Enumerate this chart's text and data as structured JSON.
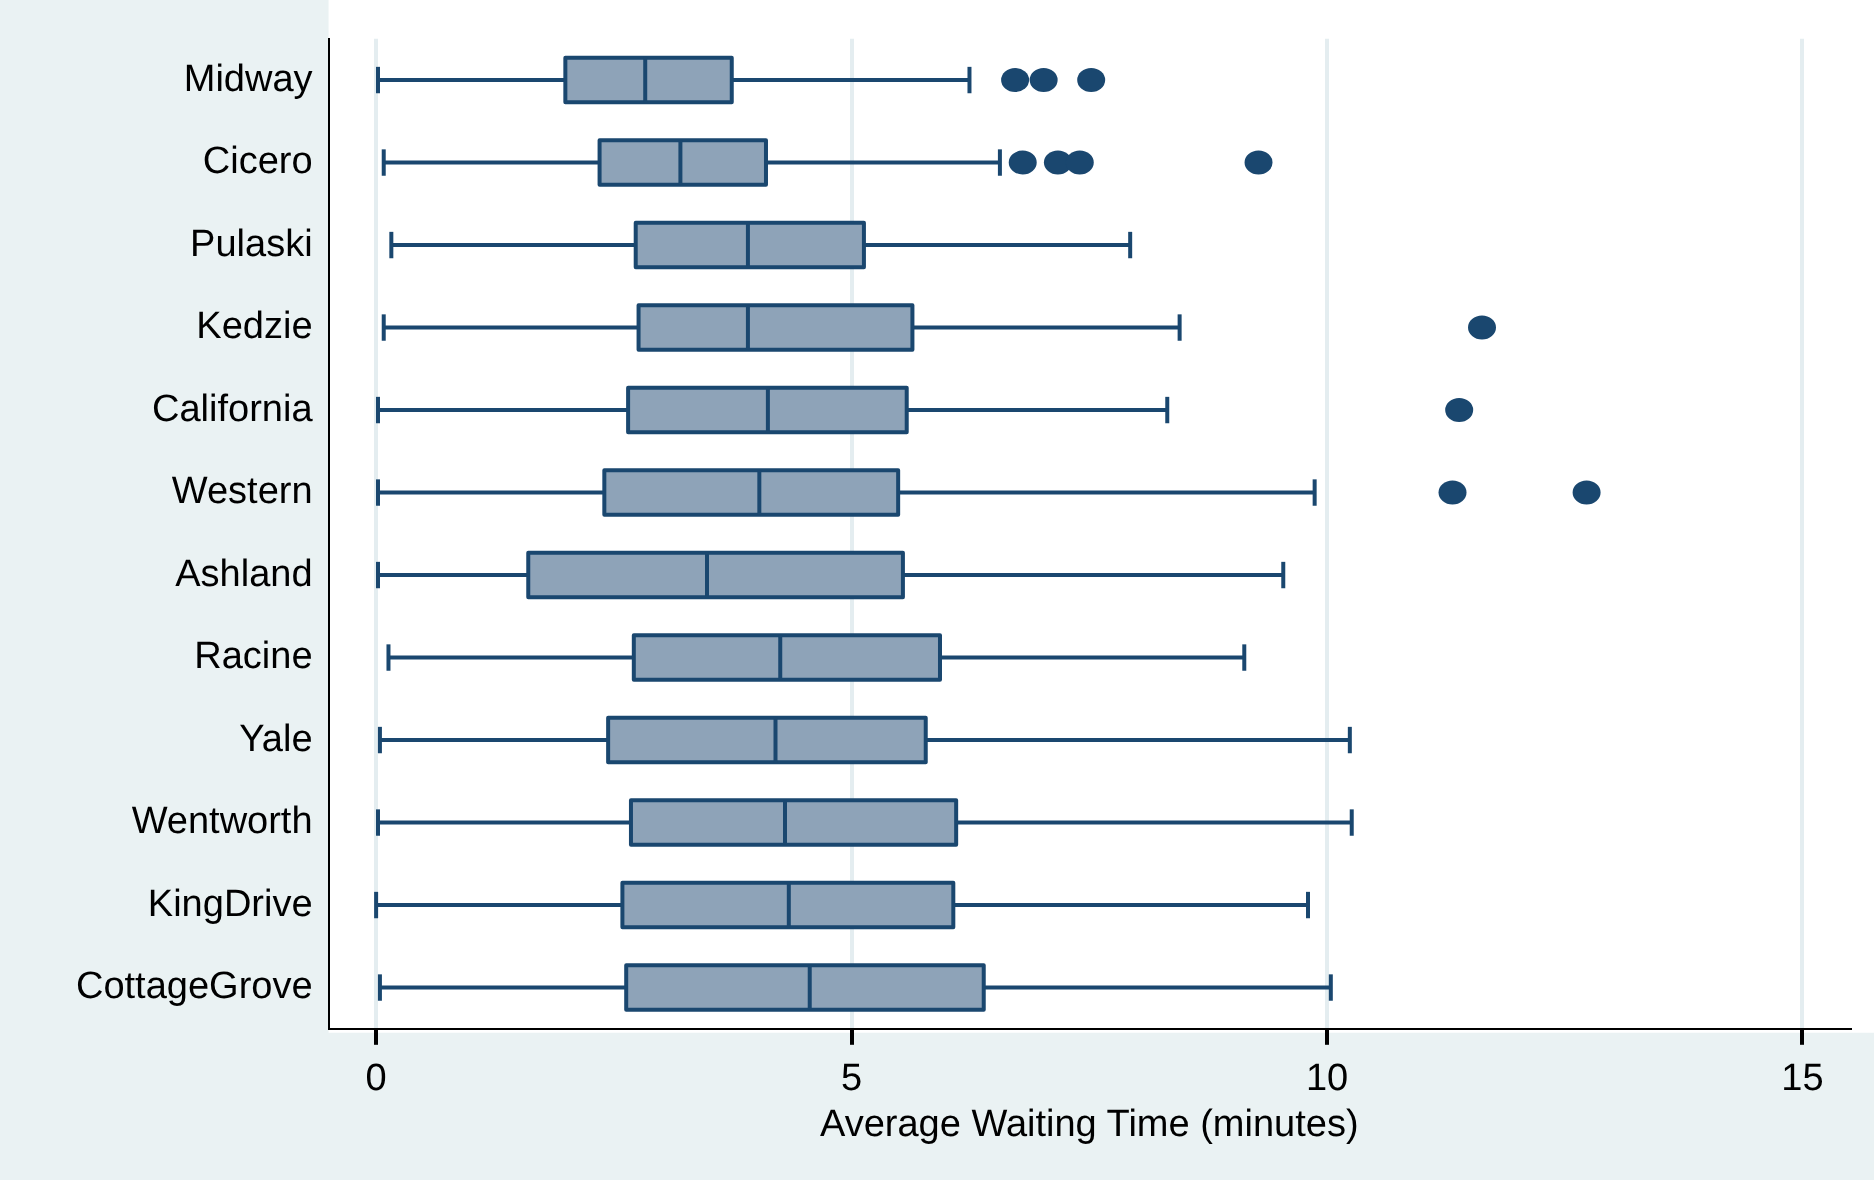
{
  "chart_data": {
    "type": "box",
    "orientation": "horizontal",
    "xlabel": "Average Waiting Time (minutes)",
    "categories": [
      "Midway",
      "Cicero",
      "Pulaski",
      "Kedzie",
      "California",
      "Western",
      "Ashland",
      "Racine",
      "Yale",
      "Wentworth",
      "KingDrive",
      "CottageGrove"
    ],
    "color": "#8ea3b8",
    "boxes": [
      {
        "low": 0.02,
        "q1": 1.99,
        "median": 2.83,
        "q3": 3.74,
        "high": 6.24,
        "outliers": [
          6.72,
          7.02,
          7.52
        ]
      },
      {
        "low": 0.08,
        "q1": 2.35,
        "median": 3.2,
        "q3": 4.1,
        "high": 6.56,
        "outliers": [
          6.8,
          7.17,
          7.4,
          9.28
        ]
      },
      {
        "low": 0.16,
        "q1": 2.73,
        "median": 3.91,
        "q3": 5.13,
        "high": 7.93
      },
      {
        "low": 0.08,
        "q1": 2.76,
        "median": 3.91,
        "q3": 5.64,
        "high": 8.45,
        "outliers": [
          11.63
        ]
      },
      {
        "low": 0.02,
        "q1": 2.65,
        "median": 4.12,
        "q3": 5.58,
        "high": 8.32,
        "outliers": [
          11.39
        ]
      },
      {
        "low": 0.02,
        "q1": 2.4,
        "median": 4.03,
        "q3": 5.49,
        "high": 9.87,
        "outliers": [
          11.32,
          12.73
        ]
      },
      {
        "low": 0.02,
        "q1": 1.6,
        "median": 3.48,
        "q3": 5.54,
        "high": 9.54
      },
      {
        "low": 0.13,
        "q1": 2.71,
        "median": 4.25,
        "q3": 5.93,
        "high": 9.13
      },
      {
        "low": 0.04,
        "q1": 2.44,
        "median": 4.2,
        "q3": 5.78,
        "high": 10.24
      },
      {
        "low": 0.02,
        "q1": 2.68,
        "median": 4.3,
        "q3": 6.1,
        "high": 10.26
      },
      {
        "low": 0.0,
        "q1": 2.59,
        "median": 4.34,
        "q3": 6.07,
        "high": 9.8
      },
      {
        "low": 0.04,
        "q1": 2.63,
        "median": 4.56,
        "q3": 6.39,
        "high": 10.04
      }
    ],
    "xlim": [
      -0.5,
      15.5
    ],
    "xticks": [
      0,
      5,
      10,
      15
    ],
    "grid": "x",
    "legend": false
  }
}
